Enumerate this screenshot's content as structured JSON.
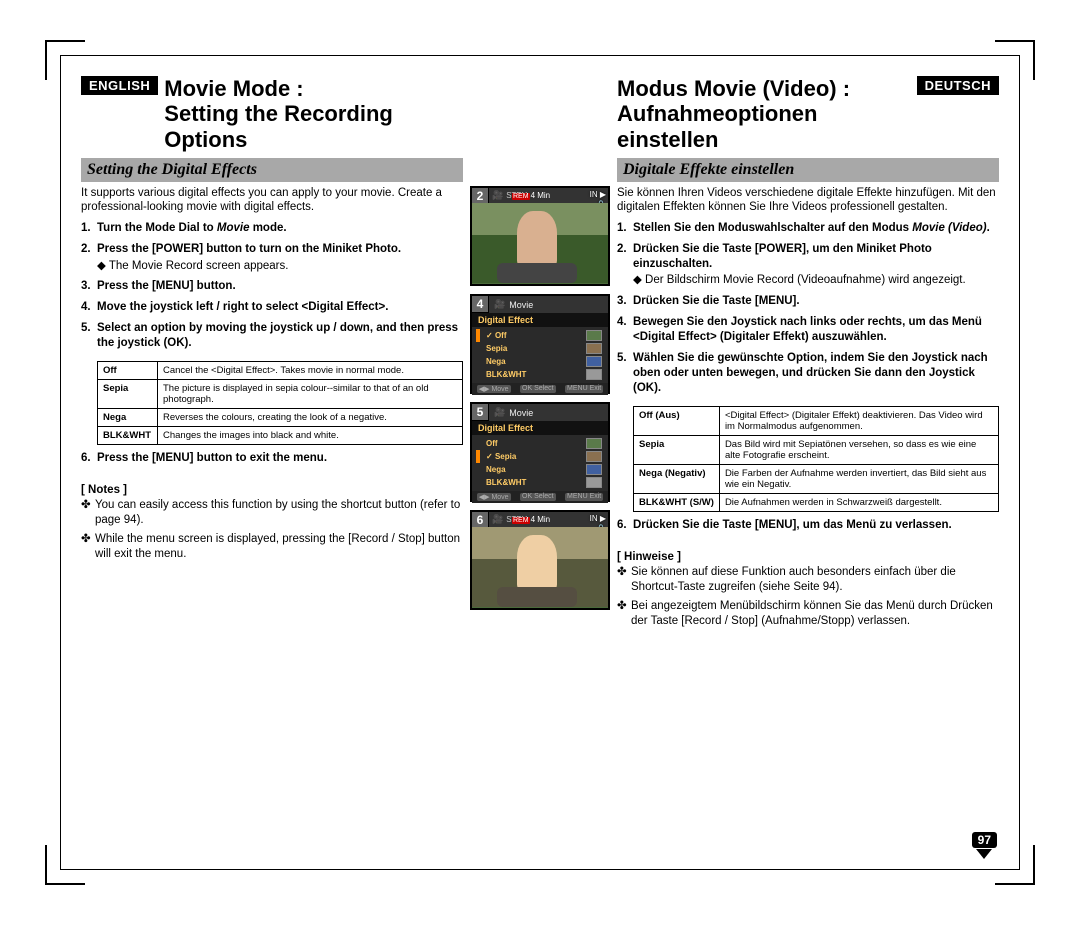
{
  "page_number": "97",
  "left": {
    "lang_badge": "ENGLISH",
    "title_line1": "Movie Mode :",
    "title_line2": "Setting the Recording Options",
    "section": "Setting the Digital Effects",
    "intro": "It supports various digital effects you can apply to your movie. Create a professional-looking movie with digital effects.",
    "steps": [
      {
        "text": "Turn the Mode Dial to ",
        "italic": "Movie",
        "after": " mode."
      },
      {
        "text": "Press the [POWER] button to turn on the Miniket Photo.",
        "sub": "The Movie Record screen appears."
      },
      {
        "text": "Press the [MENU] button."
      },
      {
        "text": "Move the joystick left / right to select <Digital Effect>."
      },
      {
        "text": "Select an option by moving the joystick up / down, and then press the joystick (OK)."
      },
      {
        "text": "Press the [MENU] button to exit the menu."
      }
    ],
    "table": [
      {
        "name": "Off",
        "desc": "Cancel the <Digital Effect>.\nTakes movie in normal mode."
      },
      {
        "name": "Sepia",
        "desc": "The picture is displayed in sepia colour--similar to that of an old photograph."
      },
      {
        "name": "Nega",
        "desc": "Reverses the colours, creating the look of a negative."
      },
      {
        "name": "BLK&WHT",
        "desc": "Changes the images into black and white."
      }
    ],
    "notes_head": "[ Notes ]",
    "notes": [
      "You can easily access this function by using the shortcut button (refer to page 94).",
      "While the menu screen is displayed, pressing the [Record / Stop] button will exit the menu."
    ]
  },
  "right": {
    "lang_badge": "DEUTSCH",
    "title_line1": "Modus Movie (Video) :",
    "title_line2": "Aufnahmeoptionen einstellen",
    "section": "Digitale Effekte einstellen",
    "intro": "Sie können Ihren Videos verschiedene digitale Effekte hinzufügen. Mit den digitalen Effekten können Sie Ihre Videos professionell gestalten.",
    "steps": [
      {
        "text": "Stellen Sie den Moduswahlschalter auf den Modus ",
        "italic": "Movie (Video)",
        "after": "."
      },
      {
        "text": "Drücken Sie die Taste [POWER], um den Miniket Photo einzuschalten.",
        "sub": "Der Bildschirm Movie Record (Videoaufnahme) wird angezeigt."
      },
      {
        "text": "Drücken Sie die Taste [MENU]."
      },
      {
        "text": "Bewegen Sie den Joystick nach links oder rechts, um das Menü <Digital Effect> (Digitaler Effekt) auszuwählen."
      },
      {
        "text": "Wählen Sie die gewünschte Option, indem Sie den Joystick nach oben oder unten bewegen, und drücken Sie dann den Joystick (OK)."
      },
      {
        "text": "Drücken Sie die Taste [MENU], um das Menü zu verlassen."
      }
    ],
    "table": [
      {
        "name": "Off (Aus)",
        "desc": "<Digital Effect> (Digitaler Effekt) deaktivieren. Das Video wird im Normalmodus aufgenommen."
      },
      {
        "name": "Sepia",
        "desc": "Das Bild wird mit Sepiatönen versehen, so dass es wie eine alte Fotografie erscheint."
      },
      {
        "name": "Nega (Negativ)",
        "desc": "Die Farben der Aufnahme werden invertiert, das Bild sieht aus wie ein Negativ."
      },
      {
        "name": "BLK&WHT (S/W)",
        "desc": "Die Aufnahmen werden in Schwarzweiß dargestellt."
      }
    ],
    "notes_head": "[ Hinweise ]",
    "notes": [
      "Sie können auf diese Funktion auch besonders einfach über die Shortcut-Taste zugreifen (siehe Seite 94).",
      "Bei angezeigtem Menübildschirm können Sie das Menü durch Drücken der Taste [Record / Stop] (Aufnahme/Stopp) verlassen."
    ]
  },
  "screens": {
    "s2": {
      "num": "2",
      "status": "STBY",
      "rem": "4 Min",
      "res": "640",
      "icons_left": [
        "🎥",
        "640",
        "🔇"
      ],
      "icons_right": [
        "IN",
        "▶",
        "🔒",
        "AE",
        "AWB",
        "⏱"
      ]
    },
    "s4": {
      "num": "4",
      "title": "Movie",
      "subtitle": "Digital Effect",
      "selected": "Off",
      "items": [
        "Off",
        "Sepia",
        "Nega",
        "BLK&WHT"
      ],
      "foot": [
        "◀▶ Move",
        "OK Select",
        "MENU Exit"
      ]
    },
    "s5": {
      "num": "5",
      "title": "Movie",
      "subtitle": "Digital Effect",
      "selected": "Sepia",
      "items": [
        "Off",
        "Sepia",
        "Nega",
        "BLK&WHT"
      ],
      "foot": [
        "◀▶ Move",
        "OK Select",
        "MENU Exit"
      ]
    },
    "s6": {
      "num": "6",
      "status": "STBY",
      "rem": "4 Min",
      "res": "640",
      "icons_left": [
        "🎥",
        "640",
        "🔇",
        "S"
      ],
      "icons_right": [
        "IN",
        "▶",
        "🔒",
        "AE",
        "AWB",
        "⏱"
      ]
    }
  },
  "colors": {
    "section_bg": "#a8a8a8",
    "badge_bg": "#000000",
    "badge_fg": "#ffffff",
    "menu_accent": "#ffcc66",
    "photo_bg": "#4a6a3a"
  }
}
